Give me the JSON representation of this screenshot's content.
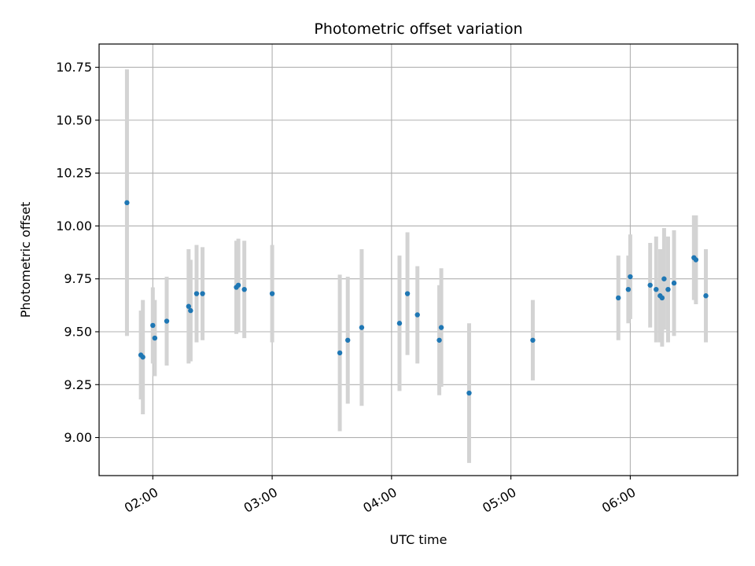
{
  "chart_data": {
    "type": "scatter",
    "title": "Photometric offset variation",
    "xlabel": "UTC time",
    "ylabel": "Photometric offset",
    "xlim": [
      "01:33",
      "06:54"
    ],
    "ylim": [
      8.82,
      10.86
    ],
    "grid": true,
    "x_ticks": [
      "02:00",
      "03:00",
      "04:00",
      "05:00",
      "06:00"
    ],
    "y_ticks": [
      9.0,
      9.25,
      9.5,
      9.75,
      10.0,
      10.25,
      10.5,
      10.75
    ],
    "y_tick_labels": [
      "9.00",
      "9.25",
      "9.50",
      "9.75",
      "10.00",
      "10.25",
      "10.50",
      "10.75"
    ],
    "colors": {
      "point": "#1f77b4",
      "errorbar": "#d3d3d3",
      "grid": "#b0b0b0"
    },
    "points": [
      {
        "x": "01:47",
        "y": 10.11,
        "err": 0.63
      },
      {
        "x": "01:54",
        "y": 9.39,
        "err": 0.21
      },
      {
        "x": "01:55",
        "y": 9.38,
        "err": 0.27
      },
      {
        "x": "02:00",
        "y": 9.53,
        "err": 0.18
      },
      {
        "x": "02:01",
        "y": 9.47,
        "err": 0.18
      },
      {
        "x": "02:07",
        "y": 9.55,
        "err": 0.21
      },
      {
        "x": "02:18",
        "y": 9.62,
        "err": 0.27
      },
      {
        "x": "02:19",
        "y": 9.6,
        "err": 0.24
      },
      {
        "x": "02:22",
        "y": 9.68,
        "err": 0.23
      },
      {
        "x": "02:25",
        "y": 9.68,
        "err": 0.22
      },
      {
        "x": "02:42",
        "y": 9.71,
        "err": 0.22
      },
      {
        "x": "02:43",
        "y": 9.72,
        "err": 0.22
      },
      {
        "x": "02:46",
        "y": 9.7,
        "err": 0.23
      },
      {
        "x": "03:00",
        "y": 9.68,
        "err": 0.23
      },
      {
        "x": "03:34",
        "y": 9.4,
        "err": 0.37
      },
      {
        "x": "03:38",
        "y": 9.46,
        "err": 0.3
      },
      {
        "x": "03:45",
        "y": 9.52,
        "err": 0.37
      },
      {
        "x": "04:04",
        "y": 9.54,
        "err": 0.32
      },
      {
        "x": "04:08",
        "y": 9.68,
        "err": 0.29
      },
      {
        "x": "04:13",
        "y": 9.58,
        "err": 0.23
      },
      {
        "x": "04:24",
        "y": 9.46,
        "err": 0.26
      },
      {
        "x": "04:25",
        "y": 9.52,
        "err": 0.28
      },
      {
        "x": "04:39",
        "y": 9.21,
        "err": 0.33
      },
      {
        "x": "05:11",
        "y": 9.46,
        "err": 0.19
      },
      {
        "x": "05:54",
        "y": 9.66,
        "err": 0.2
      },
      {
        "x": "05:59",
        "y": 9.7,
        "err": 0.16
      },
      {
        "x": "06:00",
        "y": 9.76,
        "err": 0.2
      },
      {
        "x": "06:10",
        "y": 9.72,
        "err": 0.2
      },
      {
        "x": "06:13",
        "y": 9.7,
        "err": 0.25
      },
      {
        "x": "06:15",
        "y": 9.67,
        "err": 0.22
      },
      {
        "x": "06:16",
        "y": 9.66,
        "err": 0.23
      },
      {
        "x": "06:17",
        "y": 9.75,
        "err": 0.24
      },
      {
        "x": "06:19",
        "y": 9.7,
        "err": 0.25
      },
      {
        "x": "06:22",
        "y": 9.73,
        "err": 0.25
      },
      {
        "x": "06:32",
        "y": 9.85,
        "err": 0.2
      },
      {
        "x": "06:33",
        "y": 9.84,
        "err": 0.21
      },
      {
        "x": "06:38",
        "y": 9.67,
        "err": 0.22
      }
    ]
  }
}
